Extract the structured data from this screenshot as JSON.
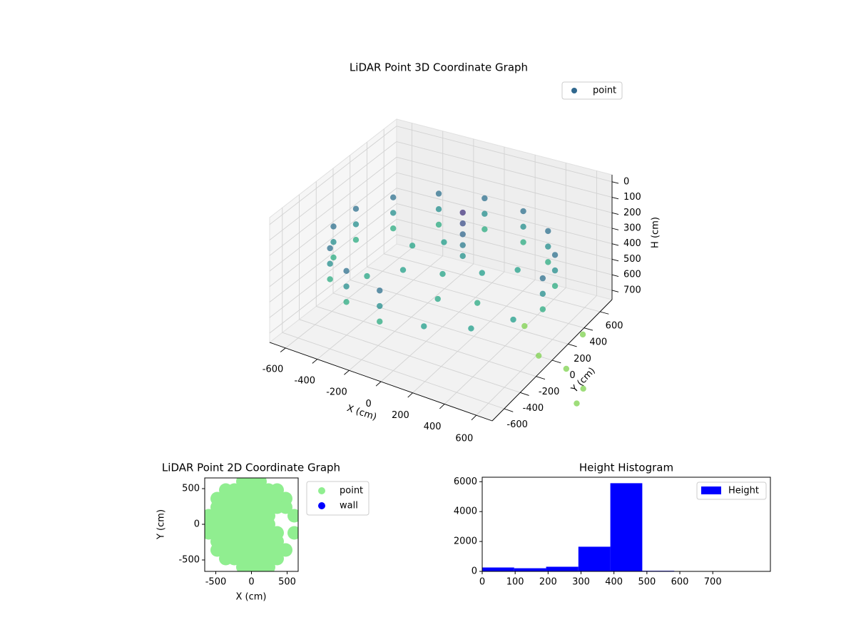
{
  "chart_data": [
    {
      "type": "scatter3d",
      "title": "LiDAR Point 3D Coordinate Graph",
      "xlabel": "X (cm)",
      "ylabel": "Y (cm)",
      "zlabel": "H (cm)",
      "colormap": "viridis",
      "xlim": [
        -700,
        700
      ],
      "ylim": [
        -750,
        750
      ],
      "zlim": [
        760,
        -45
      ],
      "xticks": [
        -600,
        -400,
        -200,
        0,
        200,
        400,
        600
      ],
      "yticks": [
        -600,
        -400,
        -200,
        0,
        200,
        400,
        600
      ],
      "zticks": [
        0,
        100,
        200,
        300,
        400,
        500,
        600,
        700
      ],
      "series": [
        {
          "name": "point",
          "color": "#31688e",
          "x": [
            640,
            585,
            428,
            198,
            -67,
            -320,
            -518,
            -626,
            -626,
            -518,
            -320,
            -67,
            640,
            585,
            428,
            198,
            -67,
            -320,
            -518,
            -626,
            -626,
            -518,
            -320,
            -67,
            640,
            585,
            428,
            198,
            -67,
            -320,
            -518,
            -626,
            -626,
            -518,
            -320,
            -67,
            198,
            428,
            585,
            50,
            50,
            50,
            50,
            50,
            0,
            -200,
            200,
            -300,
            100,
            300,
            -150,
            350,
            -350,
            1134,
            1100,
            927,
            847,
            732,
            519
          ],
          "y": [
            0,
            260,
            476,
            609,
            636,
            554,
            376,
            133,
            -133,
            -376,
            -554,
            -636,
            0,
            260,
            476,
            609,
            636,
            554,
            376,
            133,
            -133,
            -376,
            -554,
            -636,
            0,
            260,
            476,
            609,
            636,
            554,
            376,
            133,
            -133,
            -376,
            -554,
            -636,
            -609,
            -476,
            -260,
            150,
            150,
            150,
            150,
            150,
            0,
            -100,
            100,
            200,
            -250,
            -150,
            300,
            250,
            -250,
            -552,
            -400,
            -270,
            97,
            -231,
            9
          ],
          "z": [
            250,
            250,
            250,
            250,
            250,
            250,
            250,
            250,
            250,
            250,
            250,
            250,
            350,
            350,
            350,
            350,
            350,
            350,
            350,
            350,
            350,
            350,
            350,
            350,
            450,
            450,
            450,
            450,
            450,
            450,
            450,
            450,
            450,
            450,
            450,
            450,
            400,
            400,
            400,
            80,
            150,
            220,
            290,
            360,
            420,
            410,
            400,
            420,
            430,
            440,
            400,
            410,
            430,
            600,
            600,
            600,
            600,
            600,
            600
          ]
        }
      ]
    },
    {
      "type": "scatter",
      "title": "LiDAR Point 2D Coordinate Graph",
      "xlabel": "X (cm)",
      "ylabel": "Y (cm)",
      "xlim": [
        -655,
        655
      ],
      "ylim": [
        -660,
        650
      ],
      "xticks": [
        -500,
        0,
        500
      ],
      "yticks": [
        -500,
        0,
        500
      ],
      "series": [
        {
          "name": "point",
          "color": "lightgreen",
          "x": [
            -120,
            0,
            120,
            -360,
            -240,
            -120,
            0,
            120,
            240,
            360,
            -480,
            -360,
            -240,
            -120,
            0,
            120,
            240,
            360,
            480,
            -480,
            -360,
            -240,
            -120,
            0,
            120,
            240,
            360,
            480,
            -600,
            -480,
            -360,
            -240,
            -120,
            0,
            120,
            240,
            600,
            -600,
            -480,
            -360,
            -240,
            -120,
            0,
            120,
            240,
            -600,
            -480,
            -360,
            -240,
            -120,
            0,
            120,
            240,
            360,
            600,
            -480,
            -360,
            -240,
            -120,
            0,
            120,
            240,
            360,
            -480,
            -360,
            -240,
            -120,
            0,
            120,
            240,
            360,
            480,
            -360,
            -240,
            -120,
            0,
            120,
            240,
            360,
            -120,
            0,
            120,
            240
          ],
          "y": [
            600,
            600,
            600,
            480,
            480,
            480,
            480,
            480,
            480,
            480,
            360,
            360,
            360,
            360,
            360,
            360,
            360,
            360,
            360,
            240,
            240,
            240,
            240,
            240,
            240,
            240,
            240,
            240,
            120,
            120,
            120,
            120,
            120,
            120,
            120,
            120,
            120,
            0,
            0,
            0,
            0,
            0,
            0,
            0,
            0,
            -120,
            -120,
            -120,
            -120,
            -120,
            -120,
            -120,
            -120,
            -120,
            -120,
            -240,
            -240,
            -240,
            -240,
            -240,
            -240,
            -240,
            -240,
            -360,
            -360,
            -360,
            -360,
            -360,
            -360,
            -360,
            -360,
            -360,
            -480,
            -480,
            -480,
            -480,
            -480,
            -480,
            -480,
            -600,
            -600,
            -600,
            -600
          ]
        },
        {
          "name": "wall",
          "color": "blue",
          "x": [],
          "y": []
        }
      ]
    },
    {
      "type": "histogram",
      "title": "Height Histogram",
      "xlim": [
        0,
        875
      ],
      "ylim": [
        0,
        6300
      ],
      "xticks": [
        0,
        100,
        200,
        300,
        400,
        500,
        600,
        700
      ],
      "yticks": [
        0,
        2000,
        4000,
        6000
      ],
      "bins": [
        0,
        97,
        194,
        292,
        389,
        486,
        583,
        681,
        778,
        875
      ],
      "series": [
        {
          "name": "Height",
          "color": "blue",
          "values": [
            260,
            210,
            310,
            1650,
            5900,
            40,
            10,
            5,
            5
          ]
        }
      ]
    }
  ]
}
